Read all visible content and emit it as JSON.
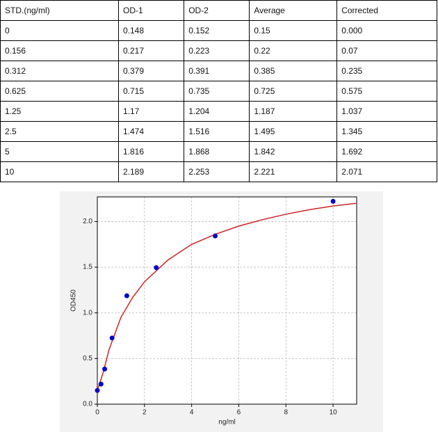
{
  "table": {
    "header": [
      "STD.(ng/ml)",
      "OD-1",
      "OD-2",
      "Average",
      "Corrected"
    ],
    "rows": [
      [
        "0",
        "0.148",
        "0.152",
        "0.15",
        "0.000"
      ],
      [
        "0.156",
        "0.217",
        "0.223",
        "0.22",
        "0.07"
      ],
      [
        "0.312",
        "0.379",
        "0.391",
        "0.385",
        "0.235"
      ],
      [
        "0.625",
        "0.715",
        "0.735",
        "0.725",
        "0.575"
      ],
      [
        "1.25",
        "1.17",
        "1.204",
        "1.187",
        "1.037"
      ],
      [
        "2.5",
        "1.474",
        "1.516",
        "1.495",
        "1.345"
      ],
      [
        "5",
        "1.816",
        "1.868",
        "1.842",
        "1.692"
      ],
      [
        "10",
        "2.189",
        "2.253",
        "2.221",
        "2.071"
      ]
    ]
  },
  "chart_data": {
    "type": "scatter",
    "xlabel": "ng/ml",
    "ylabel": "OD450",
    "xlim": [
      0,
      11
    ],
    "ylim": [
      0,
      2.27
    ],
    "xticks": [
      0,
      2,
      4,
      6,
      8,
      10
    ],
    "yticks": [
      {
        "value": 0,
        "label": "0.0"
      },
      0.5,
      {
        "value": 1,
        "label": "1.0"
      },
      1.5,
      {
        "value": 2,
        "label": "2.0"
      }
    ],
    "grid": true,
    "points": {
      "color": "#0000cc",
      "x": [
        0,
        0.156,
        0.312,
        0.625,
        1.25,
        2.5,
        5,
        10
      ],
      "values": [
        0.15,
        0.22,
        0.385,
        0.725,
        1.187,
        1.495,
        1.842,
        2.221
      ]
    },
    "fit": {
      "color": "#cc2222",
      "x": [
        0,
        0.25,
        0.5,
        1,
        1.5,
        2,
        3,
        4,
        5,
        6,
        7,
        8,
        9,
        10,
        11
      ],
      "values": [
        0.15,
        0.35,
        0.6,
        0.95,
        1.17,
        1.34,
        1.58,
        1.75,
        1.86,
        1.95,
        2.02,
        2.08,
        2.13,
        2.17,
        2.2
      ]
    }
  }
}
